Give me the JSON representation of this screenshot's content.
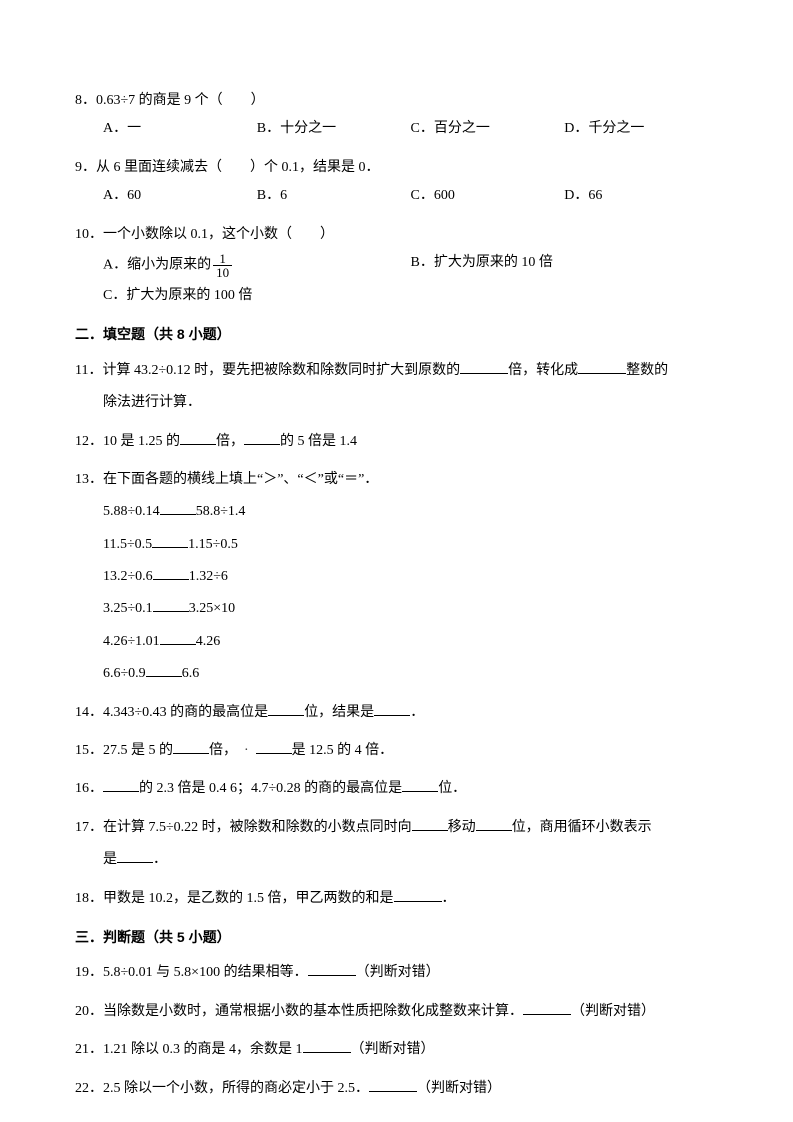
{
  "q8": {
    "text": "8．0.63÷7 的商是 9 个（　　）",
    "opts": {
      "a": "A．一",
      "b": "B．十分之一",
      "c": "C．百分之一",
      "d": "D．千分之一"
    }
  },
  "q9": {
    "text": "9．从 6 里面连续减去（　　）个 0.1，结果是 0．",
    "opts": {
      "a": "A．60",
      "b": "B．6",
      "c": "C．600",
      "d": "D．66"
    }
  },
  "q10": {
    "text": "10．一个小数除以 0.1，这个小数（　　）",
    "a_pre": "A．缩小为原来的",
    "frac_num": "1",
    "frac_den": "10",
    "b": "B．扩大为原来的 10 倍",
    "c": "C．扩大为原来的 100 倍"
  },
  "sec2": "二．填空题（共 8 小题）",
  "q11": {
    "text_a": "11．计算 43.2÷0.12 时，要先把被除数和除数同时扩大到原数的",
    "text_b": "倍，转化成",
    "text_c": "整数的",
    "line2": "除法进行计算．"
  },
  "q12": {
    "a": "12．10 是 1.25 的",
    "b": "倍，",
    "c": "的 5 倍是 1.4"
  },
  "q13": {
    "head": "13．在下面各题的横线上填上“＞”、“＜”或“＝”．",
    "r1a": "5.88÷0.14",
    "r1b": "58.8÷1.4",
    "r2a": "11.5÷0.5",
    "r2b": "1.15÷0.5",
    "r3a": "13.2÷0.6",
    "r3b": "1.32÷6",
    "r4a": "3.25÷0.1",
    "r4b": "3.25×10",
    "r5a": "4.26÷1.01",
    "r5b": "4.26",
    "r6a": "6.6÷0.9",
    "r6b": "6.6"
  },
  "q14": {
    "a": "14．4.343÷0.43 的商的最高位是",
    "b": "位，结果是",
    "c": "．"
  },
  "q15": {
    "a": "15．27.5 是 5 的",
    "b": "倍，",
    "c": "是 12.5 的 4 倍．"
  },
  "q16": {
    "a": "16．",
    "b": "的 2.3 倍是 0.4 6；4.7÷0.28 的商的最高位是",
    "c": "位．"
  },
  "q17": {
    "a": "17．在计算 7.5÷0.22 时，被除数和除数的小数点同时向",
    "b": "移动",
    "c": "位，商用循环小数表示",
    "line2a": "是",
    "line2b": "．"
  },
  "q18": {
    "a": "18．甲数是 10.2，是乙数的 1.5 倍，甲乙两数的和是",
    "b": "．"
  },
  "sec3": "三．判断题（共 5 小题）",
  "q19": {
    "a": "19．5.8÷0.01 与 5.8×100 的结果相等．",
    "b": "（判断对错）"
  },
  "q20": {
    "a": "20．当除数是小数时，通常根据小数的基本性质把除数化成整数来计算．",
    "b": "（判断对错）"
  },
  "q21": {
    "a": "21．1.21 除以 0.3 的商是 4，余数是 1",
    "b": "（判断对错）"
  },
  "q22": {
    "a": "22．2.5 除以一个小数，所得的商必定小于 2.5．",
    "b": "（判断对错）"
  }
}
